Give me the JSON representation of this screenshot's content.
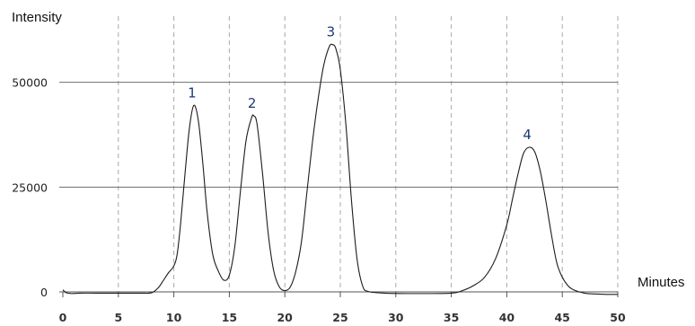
{
  "chart_data": {
    "type": "line",
    "xlabel": "Minutes",
    "ylabel": "Intensity",
    "xlim": [
      0,
      50
    ],
    "ylim": [
      0,
      60000
    ],
    "x_ticks": [
      0,
      5,
      10,
      15,
      20,
      25,
      30,
      35,
      40,
      45,
      50
    ],
    "y_ticks": [
      0,
      25000,
      50000
    ],
    "grid": {
      "vertical": "dashed",
      "horizontal": "solid"
    },
    "peaks": [
      {
        "label": "1",
        "x": 11.8,
        "y": 44500
      },
      {
        "label": "2",
        "x": 17.2,
        "y": 42000
      },
      {
        "label": "3",
        "x": 24.3,
        "y": 59000
      },
      {
        "label": "4",
        "x": 42.0,
        "y": 34500
      }
    ],
    "series": [
      {
        "x": [
          0,
          0.3,
          0.8,
          1.5,
          3,
          5,
          7,
          8,
          8.6,
          9,
          9.5,
          10,
          10.3,
          10.6,
          11,
          11.4,
          11.8,
          12.2,
          12.6,
          13,
          13.5,
          14,
          14.5,
          15,
          15.5,
          16,
          16.5,
          17,
          17.2,
          17.5,
          18,
          18.5,
          19,
          19.5,
          20,
          20.5,
          21,
          21.5,
          22,
          22.5,
          23,
          23.5,
          24,
          24.3,
          24.6,
          25,
          25.5,
          26,
          26.5,
          27,
          27.5,
          29,
          32,
          35,
          36,
          37,
          38,
          39,
          40,
          40.5,
          41,
          41.5,
          42,
          42.5,
          43,
          43.5,
          44,
          44.5,
          45,
          45.5,
          46,
          47,
          48,
          49,
          50
        ],
        "y": [
          500,
          -200,
          -400,
          -300,
          -300,
          -300,
          -300,
          -200,
          1000,
          2500,
          4500,
          6200,
          9000,
          16000,
          28000,
          39000,
          44500,
          41000,
          31000,
          19000,
          9000,
          5000,
          2800,
          4000,
          11000,
          24000,
          36000,
          41500,
          42000,
          40000,
          28000,
          14000,
          5000,
          1200,
          300,
          1200,
          5000,
          12000,
          24000,
          36000,
          46000,
          54000,
          58500,
          59000,
          58000,
          53000,
          40000,
          22000,
          8000,
          1500,
          100,
          -300,
          -400,
          -300,
          300,
          1500,
          3500,
          8000,
          16000,
          22000,
          28000,
          33000,
          34500,
          33500,
          29000,
          22000,
          14000,
          7000,
          3500,
          1500,
          500,
          -300,
          -500,
          -600,
          -600
        ]
      }
    ]
  }
}
